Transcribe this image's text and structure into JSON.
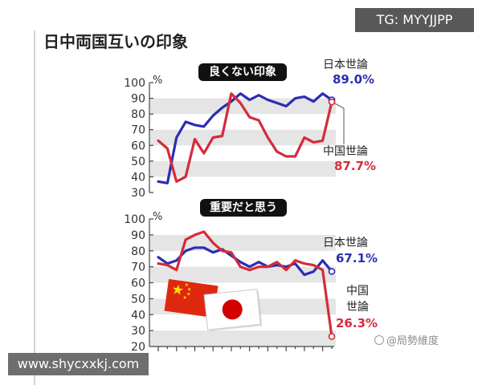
{
  "watermark_badge": "TG: MYYJJPP",
  "title": "日中両国互いの印象",
  "credit": "@局勢維度",
  "site_url": "www.shycxxkj.com",
  "chart_data": [
    {
      "type": "line",
      "title": "良くない印象",
      "unit": "%",
      "ylim": [
        30,
        100
      ],
      "yticks": [
        100,
        90,
        80,
        70,
        60,
        50,
        40,
        30
      ],
      "grid": true,
      "series": [
        {
          "name": "日本世論",
          "color": "#2b2db3",
          "end_label": "89.0%",
          "values": [
            37,
            36,
            65,
            75,
            73,
            72,
            79,
            84,
            88,
            93,
            89,
            92,
            89,
            87,
            85,
            90,
            91,
            88,
            93,
            89.0
          ]
        },
        {
          "name": "中国世論",
          "color": "#d52b3a",
          "end_label": "87.7%",
          "values": [
            63,
            58,
            37,
            40,
            64,
            55,
            65,
            66,
            93,
            87,
            78,
            76,
            65,
            56,
            53,
            53,
            65,
            62,
            63,
            87.7
          ]
        }
      ]
    },
    {
      "type": "line",
      "title": "重要だと思う",
      "unit": "%",
      "ylim": [
        20,
        100
      ],
      "yticks": [
        100,
        90,
        80,
        70,
        60,
        50,
        40,
        30,
        20
      ],
      "grid": true,
      "series": [
        {
          "name": "日本世論",
          "color": "#2b2db3",
          "end_label": "67.1%",
          "values": [
            76,
            72,
            74,
            80,
            82,
            82,
            79,
            81,
            77,
            73,
            70,
            73,
            70,
            71,
            70,
            72,
            65,
            67,
            74,
            67.1
          ]
        },
        {
          "name": "中国世論",
          "color": "#d52b3a",
          "end_label": "26.3%",
          "values": [
            72,
            71,
            68,
            87,
            90,
            92,
            85,
            80,
            79,
            70,
            68,
            70,
            70,
            73,
            68,
            74,
            72,
            71,
            68,
            26.3
          ]
        }
      ]
    }
  ]
}
